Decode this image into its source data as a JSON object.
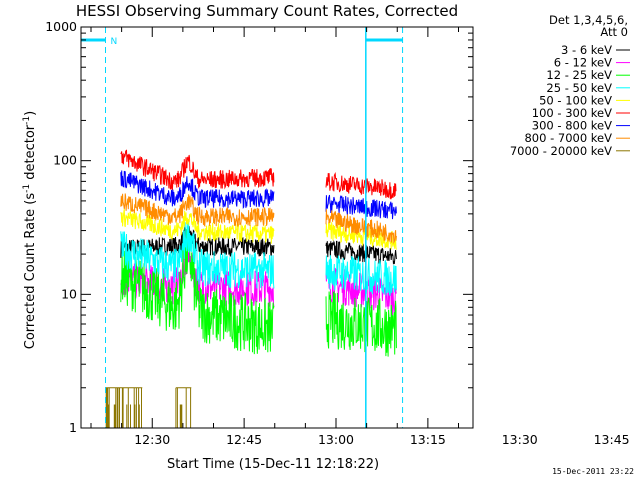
{
  "chart_data": {
    "type": "line",
    "title": "HESSI Observing Summary Count Rates, Corrected",
    "xlabel": "Start Time (15-Dec-11 12:18:22)",
    "ylabel": "Corrected Count Rate (s⁻¹ detector⁻¹)",
    "yscale": "log",
    "ylim": [
      1,
      1000
    ],
    "xlim_minutes": [
      0,
      64
    ],
    "x_ticks": [
      "12:30",
      "12:45",
      "13:00",
      "13:15",
      "13:30",
      "13:45"
    ],
    "y_ticks": [
      "1",
      "10",
      "100",
      "1000"
    ],
    "legend_header": [
      "Det 1,3,4,5,6,",
      "Att 0"
    ],
    "legend_position": "right",
    "timestamp": "15-Dec-2011 23:22",
    "night_marker": "N",
    "segments": [
      [
        6.5,
        31.5
      ],
      [
        40,
        51.5
      ]
    ],
    "flare_peak_minute": 17.5,
    "series": [
      {
        "name": "3 - 6 keV",
        "color": "#000000",
        "seg1": [
          22,
          23,
          22.5
        ],
        "seg2": [
          22,
          19
        ],
        "peak": 1.25
      },
      {
        "name": "6 - 12 keV",
        "color": "#ff00ff",
        "seg1": [
          13,
          11.5,
          11
        ],
        "seg2": [
          12,
          9.5
        ],
        "peak": 1.6
      },
      {
        "name": "12 - 25 keV",
        "color": "#00ff00",
        "seg1": [
          14,
          8,
          5.5
        ],
        "seg2": [
          6.5,
          5.5
        ],
        "peak": 2.6
      },
      {
        "name": "25 - 50 keV",
        "color": "#00ffff",
        "seg1": [
          22,
          16,
          15
        ],
        "seg2": [
          15,
          13
        ],
        "peak": 1.8
      },
      {
        "name": "50 - 100 keV",
        "color": "#ffff00",
        "seg1": [
          38,
          30,
          28
        ],
        "seg2": [
          30,
          25
        ],
        "peak": 1.3
      },
      {
        "name": "100 - 300 keV",
        "color": "#ff0000",
        "seg1": [
          110,
          70,
          75
        ],
        "seg2": [
          70,
          60
        ],
        "peak": 1.4
      },
      {
        "name": "300 - 800 keV",
        "color": "#0000ff",
        "seg1": [
          75,
          52,
          52
        ],
        "seg2": [
          48,
          42
        ],
        "peak": 1.35
      },
      {
        "name": "800 - 7000 keV",
        "color": "#ff8c00",
        "seg1": [
          50,
          38,
          38
        ],
        "seg2": [
          37,
          28
        ],
        "peak": 1.3
      },
      {
        "name": "7000 - 20000 keV",
        "color": "#8b7500",
        "seg1": [
          1,
          1,
          1
        ],
        "seg2": [
          1,
          1
        ],
        "peak": 1
      }
    ]
  }
}
